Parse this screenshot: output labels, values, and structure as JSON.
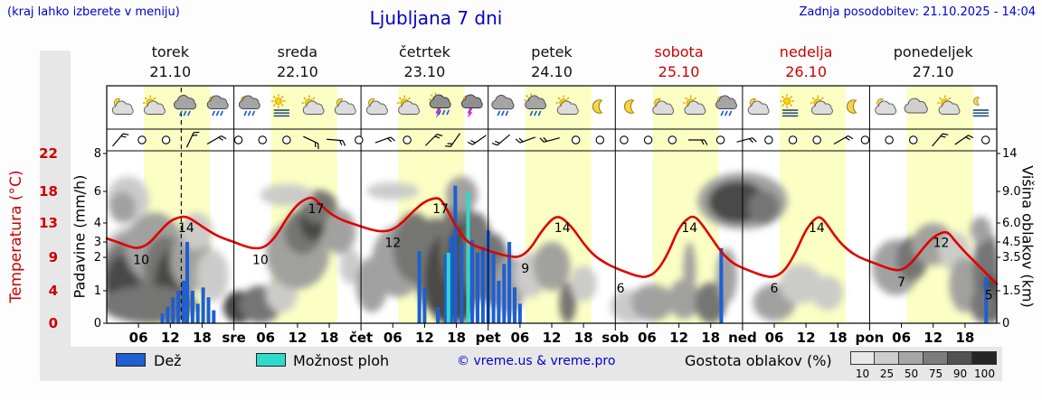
{
  "header": {
    "hint": "(kraj lahko izberete v meniju)",
    "title": "Ljubljana 7 dni",
    "updated": "Zadnja posodobitev: 21.10.2025 - 14:04"
  },
  "days": [
    {
      "name": "torek",
      "date": "21.10",
      "red": false,
      "icons": [
        "moon-cloud",
        "sun-cloud",
        "rain",
        "rain-moon"
      ]
    },
    {
      "name": "sreda",
      "date": "22.10",
      "red": false,
      "icons": [
        "rain-moon",
        "stratus-sun",
        "sun-cloud",
        "moon-cloud"
      ]
    },
    {
      "name": "četrtek",
      "date": "23.10",
      "red": false,
      "icons": [
        "moon-cloud",
        "sun-cloud",
        "thunder-sun",
        "thunder-moon"
      ]
    },
    {
      "name": "petek",
      "date": "24.10",
      "red": false,
      "icons": [
        "rain",
        "rain-sun",
        "sun-cloud",
        "moon"
      ]
    },
    {
      "name": "sobota",
      "date": "25.10",
      "red": true,
      "icons": [
        "moon",
        "moon-cloud",
        "sun-cloud",
        "rain-moon"
      ]
    },
    {
      "name": "nedelja",
      "date": "26.10",
      "red": true,
      "icons": [
        "moon-cloud",
        "stratus-sun",
        "sun-cloud",
        "moon"
      ]
    },
    {
      "name": "ponedeljek",
      "date": "27.10",
      "red": false,
      "icons": [
        "moon-cloud",
        "cloud",
        "sun-cloud",
        "stratus-moon"
      ]
    }
  ],
  "axes": {
    "temp_label": "Temperatura (°C)",
    "precip_label": "Padavine (mm/h)",
    "cloud_label": "Višina oblakov (km)",
    "temp_ticks": [
      22,
      18,
      13,
      9,
      4,
      0
    ],
    "precip_ticks": [
      8,
      6,
      4,
      3,
      2,
      1,
      0
    ],
    "cloud_ticks": [
      "14",
      "9.0",
      "6.0",
      "4.5",
      "3.5",
      "1.5",
      "0"
    ],
    "hour_labels": [
      "06",
      "12",
      "18"
    ],
    "day_abbrevs": [
      "sre",
      "čet",
      "pet",
      "sob",
      "ned",
      "pon"
    ]
  },
  "legend": {
    "rain_label": "Dež",
    "showers_label": "Možnost ploh",
    "copyright": "© vreme.us & vreme.pro",
    "cloud_density_label": "Gostota oblakov (%)",
    "density_levels": [
      10,
      25,
      50,
      75,
      90,
      100
    ]
  },
  "colors": {
    "accent_blue": "#0000cc",
    "red": "#cc0000",
    "temp_line": "#e10000",
    "rain": "#1e5fd2",
    "showers": "#2fd9cb",
    "day_band": "#fbffc4",
    "plot_bg": "#ffffff",
    "density_scale": [
      "#e8e8e8",
      "#cdcdcd",
      "#a6a6a6",
      "#7d7d7d",
      "#525252",
      "#262626"
    ],
    "density_map": {
      "d10": "#e4e4e4",
      "d25": "#c9c9c9",
      "d50": "#9d9d9d",
      "d75": "#6e6e6e",
      "d90": "#3f3f3f"
    }
  },
  "now_hour": 14.07,
  "chart_data": {
    "type": "meteogram",
    "x_unit": "hours from torek 21.10 00:00",
    "x_range": [
      0,
      168
    ],
    "temp_axis_ticks": [
      22,
      18,
      13,
      9,
      4,
      0
    ],
    "precip_axis_ticks": [
      8,
      6,
      4,
      3,
      2,
      1,
      0
    ],
    "cloud_height_ticks_km": [
      14,
      9.0,
      6.0,
      4.5,
      3.5,
      1.5,
      0
    ],
    "temperature_c": {
      "ylim": [
        0,
        22
      ],
      "points": [
        [
          0,
          11.2
        ],
        [
          2,
          10.8
        ],
        [
          4,
          10.3
        ],
        [
          6,
          10
        ],
        [
          8,
          10.6
        ],
        [
          10,
          12
        ],
        [
          12,
          13.4
        ],
        [
          14,
          14
        ],
        [
          15,
          14
        ],
        [
          16,
          13.6
        ],
        [
          18,
          12.6
        ],
        [
          20,
          11.8
        ],
        [
          22,
          11.2
        ],
        [
          24,
          10.8
        ],
        [
          26,
          10.3
        ],
        [
          28,
          10
        ],
        [
          30,
          10.2
        ],
        [
          32,
          11.5
        ],
        [
          34,
          13.8
        ],
        [
          36,
          16
        ],
        [
          38,
          17
        ],
        [
          39,
          17
        ],
        [
          40,
          16.2
        ],
        [
          42,
          14.6
        ],
        [
          44,
          13.6
        ],
        [
          46,
          13
        ],
        [
          48,
          12.6
        ],
        [
          50,
          12.2
        ],
        [
          52,
          12
        ],
        [
          54,
          12.2
        ],
        [
          56,
          13.2
        ],
        [
          58,
          15
        ],
        [
          60,
          16.4
        ],
        [
          62,
          17
        ],
        [
          63,
          16.8
        ],
        [
          64,
          15.5
        ],
        [
          66,
          12.5
        ],
        [
          68,
          10.8
        ],
        [
          70,
          10.2
        ],
        [
          72,
          9.8
        ],
        [
          74,
          9.4
        ],
        [
          76,
          9.1
        ],
        [
          78,
          9
        ],
        [
          80,
          10
        ],
        [
          82,
          12
        ],
        [
          84,
          13.6
        ],
        [
          85,
          14
        ],
        [
          86,
          13.8
        ],
        [
          88,
          12.4
        ],
        [
          90,
          10.6
        ],
        [
          92,
          9.2
        ],
        [
          94,
          8.2
        ],
        [
          96,
          7.4
        ],
        [
          98,
          6.8
        ],
        [
          100,
          6.2
        ],
        [
          102,
          6
        ],
        [
          104,
          7
        ],
        [
          106,
          9.5
        ],
        [
          108,
          12.5
        ],
        [
          110,
          14
        ],
        [
          111,
          14
        ],
        [
          112,
          13.2
        ],
        [
          114,
          11.4
        ],
        [
          116,
          9.6
        ],
        [
          118,
          8.2
        ],
        [
          120,
          7.4
        ],
        [
          122,
          6.8
        ],
        [
          124,
          6.2
        ],
        [
          126,
          6
        ],
        [
          128,
          7
        ],
        [
          130,
          9.5
        ],
        [
          132,
          12.3
        ],
        [
          134,
          14
        ],
        [
          135,
          13.8
        ],
        [
          136,
          12.8
        ],
        [
          138,
          11
        ],
        [
          140,
          9.8
        ],
        [
          142,
          9
        ],
        [
          144,
          8.4
        ],
        [
          146,
          7.8
        ],
        [
          148,
          7.2
        ],
        [
          150,
          7
        ],
        [
          152,
          8.2
        ],
        [
          154,
          10
        ],
        [
          156,
          11.4
        ],
        [
          158,
          12
        ],
        [
          159,
          11.8
        ],
        [
          160,
          11
        ],
        [
          162,
          9.6
        ],
        [
          164,
          8.2
        ],
        [
          166,
          6.6
        ],
        [
          168,
          5
        ]
      ],
      "labels": [
        [
          6.5,
          10
        ],
        [
          15,
          14
        ],
        [
          29,
          10
        ],
        [
          39.5,
          17
        ],
        [
          54,
          12
        ],
        [
          63,
          17
        ],
        [
          79,
          9
        ],
        [
          86,
          14
        ],
        [
          97,
          6
        ],
        [
          110,
          14
        ],
        [
          126,
          6
        ],
        [
          134,
          14
        ],
        [
          150,
          7
        ],
        [
          157.5,
          12
        ],
        [
          166.5,
          5
        ]
      ]
    },
    "rain_mm_h": [
      [
        10.5,
        0.3
      ],
      [
        11.5,
        0.5
      ],
      [
        12.5,
        0.8
      ],
      [
        13.5,
        1
      ],
      [
        14.5,
        1.3
      ],
      [
        15.2,
        3
      ],
      [
        16.2,
        1
      ],
      [
        17.2,
        0.6
      ],
      [
        18.2,
        1.1
      ],
      [
        19.2,
        0.8
      ],
      [
        20.2,
        0.4
      ],
      [
        59,
        2.4
      ],
      [
        60,
        1.1
      ],
      [
        62.5,
        0.5
      ],
      [
        64,
        2.2
      ],
      [
        65,
        3.3
      ],
      [
        65.8,
        6.3
      ],
      [
        67,
        2.9
      ],
      [
        69,
        3.1
      ],
      [
        70,
        2.3
      ],
      [
        71,
        2.7
      ],
      [
        72,
        3.6
      ],
      [
        73,
        2.4
      ],
      [
        74,
        1.3
      ],
      [
        75,
        1.8
      ],
      [
        76,
        3
      ],
      [
        77,
        1.1
      ],
      [
        78,
        0.6
      ],
      [
        116,
        2.6
      ],
      [
        166,
        1.4
      ]
    ],
    "showers_mm_h": [
      [
        64.5,
        2.3
      ],
      [
        68.2,
        6
      ]
    ],
    "cloud_blobs": [
      [
        5,
        3,
        7,
        2.8,
        "d25"
      ],
      [
        5,
        3,
        6,
        2.4,
        "d50"
      ],
      [
        4,
        2.5,
        5,
        2,
        "d75"
      ],
      [
        3,
        2,
        3.2,
        1.6,
        "d90"
      ],
      [
        9,
        4.5,
        5.5,
        2.5,
        "d50"
      ],
      [
        11,
        3,
        4,
        2,
        "d75"
      ],
      [
        12.5,
        2,
        3.5,
        2,
        "d90"
      ],
      [
        4,
        8.5,
        4,
        2.5,
        "d25"
      ],
      [
        3,
        7.5,
        2.5,
        1.5,
        "d50"
      ],
      [
        8,
        0.9,
        9,
        0.9,
        "d75"
      ],
      [
        16,
        3.5,
        4,
        2,
        "d50"
      ],
      [
        17,
        5.5,
        3,
        1.5,
        "d25"
      ],
      [
        20,
        2.5,
        3,
        1.5,
        "d25"
      ],
      [
        25,
        0.6,
        3,
        0.9,
        "d90"
      ],
      [
        29,
        0.8,
        4,
        1,
        "d75"
      ],
      [
        33,
        1.5,
        3,
        1,
        "d25"
      ],
      [
        36,
        4,
        6,
        2.4,
        "d50"
      ],
      [
        37,
        5.5,
        3.5,
        1.8,
        "d75"
      ],
      [
        39,
        6.2,
        2.5,
        1.6,
        "d90"
      ],
      [
        40,
        7.6,
        3.5,
        1.6,
        "d75"
      ],
      [
        34,
        8.8,
        5,
        1.2,
        "d25"
      ],
      [
        44,
        5.5,
        3,
        1.8,
        "d50"
      ],
      [
        46,
        3,
        2,
        1.1,
        "d25"
      ],
      [
        50,
        2,
        3,
        1.5,
        "d50"
      ],
      [
        55,
        3.5,
        5,
        2.3,
        "d50"
      ],
      [
        58,
        4.5,
        4,
        2.5,
        "d75"
      ],
      [
        62,
        3.5,
        4,
        3,
        "d75"
      ],
      [
        64,
        2.5,
        4,
        2.6,
        "d90"
      ],
      [
        66.5,
        5,
        3.5,
        4,
        "d75"
      ],
      [
        67,
        3,
        3,
        3,
        "d90"
      ],
      [
        67,
        9,
        3,
        2,
        "d50"
      ],
      [
        54,
        9.2,
        5,
        1,
        "d25"
      ],
      [
        70,
        4,
        3,
        3,
        "d75"
      ],
      [
        73,
        3,
        3,
        2.2,
        "d75"
      ],
      [
        76,
        2,
        3,
        1.6,
        "d50"
      ],
      [
        80,
        2.5,
        3,
        1.3,
        "d25"
      ],
      [
        84,
        3,
        3.5,
        1.5,
        "d50"
      ],
      [
        87,
        1,
        1.6,
        1,
        "d75"
      ],
      [
        90,
        2,
        2.5,
        1,
        "d25"
      ],
      [
        99,
        0.8,
        4,
        0.8,
        "d25"
      ],
      [
        103,
        1,
        4,
        0.9,
        "d50"
      ],
      [
        109,
        1.2,
        3,
        1,
        "d50"
      ],
      [
        110,
        2.8,
        1.2,
        1.7,
        "d50"
      ],
      [
        114,
        1,
        3,
        1,
        "d75"
      ],
      [
        117,
        2.5,
        2,
        1.6,
        "d50"
      ],
      [
        120,
        8.5,
        8.5,
        3,
        "d50"
      ],
      [
        119,
        8.2,
        5.5,
        2.2,
        "d90"
      ],
      [
        124,
        7.5,
        3,
        1.6,
        "d75"
      ],
      [
        126,
        1,
        4,
        0.9,
        "d50"
      ],
      [
        131,
        2,
        4,
        1.1,
        "d25"
      ],
      [
        136,
        1.5,
        3,
        0.9,
        "d25"
      ],
      [
        149,
        3,
        4.5,
        1.7,
        "d50"
      ],
      [
        152,
        3.5,
        3,
        1.4,
        "d75"
      ],
      [
        156,
        4.5,
        4,
        1.5,
        "d50"
      ],
      [
        160,
        4,
        3,
        1.3,
        "d25"
      ],
      [
        162,
        2,
        3,
        1.5,
        "d50"
      ],
      [
        166,
        3,
        2.5,
        2.5,
        "d75"
      ],
      [
        167,
        1.2,
        2,
        1.2,
        "d90"
      ],
      [
        165,
        5.5,
        2,
        1.1,
        "d50"
      ],
      [
        165.5,
        0.8,
        2.5,
        0.9,
        "d75"
      ]
    ],
    "wind": [
      {
        "type": "barb",
        "dir": 40
      },
      {
        "type": "calm"
      },
      {
        "type": "calm"
      },
      {
        "type": "barb",
        "dir": 25
      },
      {
        "type": "barb",
        "dir": 60
      },
      {
        "type": "calm"
      },
      {
        "type": "calm"
      },
      {
        "type": "calm"
      },
      {
        "type": "barb",
        "dir": 115
      },
      {
        "type": "barb",
        "dir": 95
      },
      {
        "type": "calm"
      },
      {
        "type": "barb",
        "dir": 70
      },
      {
        "type": "calm"
      },
      {
        "type": "barb",
        "dir": 45
      },
      {
        "type": "barb",
        "dir": 215
      },
      {
        "type": "barb",
        "dir": 235
      },
      {
        "type": "barb",
        "dir": 230
      },
      {
        "type": "barb",
        "dir": 250
      },
      {
        "type": "barb",
        "dir": 255
      },
      {
        "type": "calm"
      },
      {
        "type": "calm"
      },
      {
        "type": "calm"
      },
      {
        "type": "calm"
      },
      {
        "type": "calm"
      },
      {
        "type": "barb",
        "dir": 90
      },
      {
        "type": "calm"
      },
      {
        "type": "barb",
        "dir": 75
      },
      {
        "type": "calm"
      },
      {
        "type": "calm"
      },
      {
        "type": "calm"
      },
      {
        "type": "barb",
        "dir": 60
      },
      {
        "type": "calm"
      },
      {
        "type": "calm"
      },
      {
        "type": "calm"
      },
      {
        "type": "barb",
        "dir": 40
      },
      {
        "type": "barb",
        "dir": 55
      },
      {
        "type": "calm"
      }
    ]
  }
}
